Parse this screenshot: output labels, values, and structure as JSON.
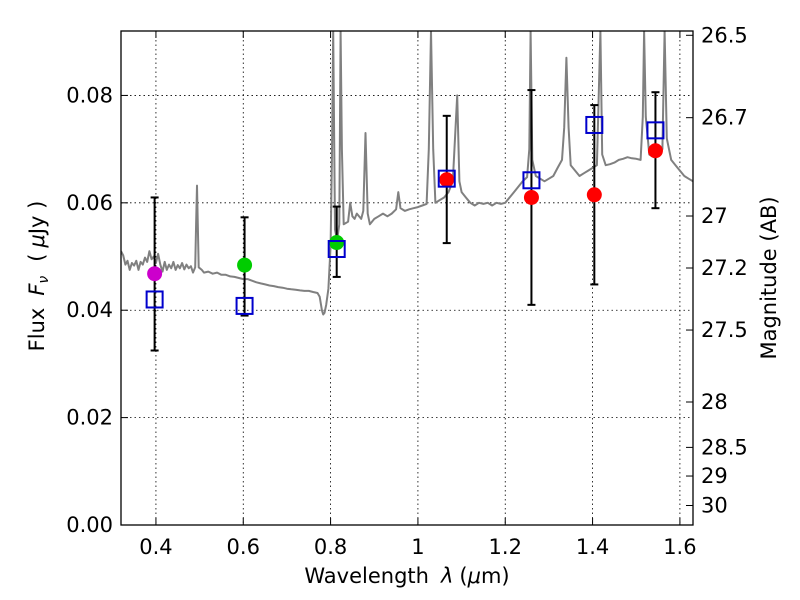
{
  "chart_data": {
    "type": "scatter",
    "xlabel_main": "Wavelength",
    "xlabel_symbol": "λ",
    "xlabel_unit_open": "(",
    "xlabel_unit_mu": "μ",
    "xlabel_unit_rest": "m)",
    "ylabel_main": "Flux",
    "ylabel_symbol": "F",
    "ylabel_sub": "ν",
    "ylabel_unit_open": "(",
    "ylabel_unit_mu": "μ",
    "ylabel_unit_rest": "Jy )",
    "y2label": "Magnitude (AB)",
    "xlim": [
      0.32,
      1.63
    ],
    "ylim": [
      0.0,
      0.092
    ],
    "grid": true,
    "x_ticks": [
      {
        "value": 0.4,
        "label": "0.4"
      },
      {
        "value": 0.6,
        "label": "0.6"
      },
      {
        "value": 0.8,
        "label": "0.8"
      },
      {
        "value": 1.0,
        "label": "1"
      },
      {
        "value": 1.2,
        "label": "1.2"
      },
      {
        "value": 1.4,
        "label": "1.4"
      },
      {
        "value": 1.6,
        "label": "1.6"
      }
    ],
    "y_ticks": [
      {
        "value": 0.0,
        "label": "0.00"
      },
      {
        "value": 0.02,
        "label": "0.02"
      },
      {
        "value": 0.04,
        "label": "0.04"
      },
      {
        "value": 0.06,
        "label": "0.06"
      },
      {
        "value": 0.08,
        "label": "0.08"
      }
    ],
    "y2_ticks": [
      {
        "value": 26.5,
        "label": "26.5"
      },
      {
        "value": 26.7,
        "label": "26.7"
      },
      {
        "value": 27.0,
        "label": "27"
      },
      {
        "value": 27.2,
        "label": "27.2"
      },
      {
        "value": 27.5,
        "label": "27.5"
      },
      {
        "value": 28.0,
        "label": "28"
      },
      {
        "value": 28.5,
        "label": "28.5"
      },
      {
        "value": 29.0,
        "label": "29"
      },
      {
        "value": 30.0,
        "label": "30"
      }
    ],
    "series": [
      {
        "name": "model spectrum",
        "kind": "line",
        "color": "#808080",
        "points": [
          [
            0.32,
            0.051
          ],
          [
            0.325,
            0.0502
          ],
          [
            0.33,
            0.0485
          ],
          [
            0.335,
            0.0492
          ],
          [
            0.34,
            0.0475
          ],
          [
            0.345,
            0.0488
          ],
          [
            0.35,
            0.0483
          ],
          [
            0.355,
            0.0492
          ],
          [
            0.36,
            0.0475
          ],
          [
            0.365,
            0.049
          ],
          [
            0.37,
            0.0485
          ],
          [
            0.375,
            0.0498
          ],
          [
            0.38,
            0.049
          ],
          [
            0.385,
            0.051
          ],
          [
            0.39,
            0.0495
          ],
          [
            0.395,
            0.05
          ],
          [
            0.4,
            0.0488
          ],
          [
            0.405,
            0.0505
          ],
          [
            0.41,
            0.0485
          ],
          [
            0.415,
            0.0472
          ],
          [
            0.42,
            0.049
          ],
          [
            0.425,
            0.0475
          ],
          [
            0.43,
            0.0485
          ],
          [
            0.435,
            0.0478
          ],
          [
            0.44,
            0.049
          ],
          [
            0.445,
            0.0475
          ],
          [
            0.45,
            0.0484
          ],
          [
            0.455,
            0.0478
          ],
          [
            0.46,
            0.0488
          ],
          [
            0.465,
            0.0476
          ],
          [
            0.47,
            0.0485
          ],
          [
            0.475,
            0.0478
          ],
          [
            0.48,
            0.0482
          ],
          [
            0.485,
            0.047
          ],
          [
            0.49,
            0.048
          ],
          [
            0.492,
            0.056
          ],
          [
            0.494,
            0.0632
          ],
          [
            0.496,
            0.056
          ],
          [
            0.498,
            0.048
          ],
          [
            0.505,
            0.0475
          ],
          [
            0.51,
            0.047
          ],
          [
            0.52,
            0.0472
          ],
          [
            0.53,
            0.0468
          ],
          [
            0.54,
            0.047
          ],
          [
            0.55,
            0.0466
          ],
          [
            0.56,
            0.0466
          ],
          [
            0.57,
            0.0463
          ],
          [
            0.58,
            0.0462
          ],
          [
            0.59,
            0.046
          ],
          [
            0.6,
            0.0458
          ],
          [
            0.61,
            0.0458
          ],
          [
            0.62,
            0.0455
          ],
          [
            0.63,
            0.0452
          ],
          [
            0.64,
            0.045
          ],
          [
            0.65,
            0.0448
          ],
          [
            0.66,
            0.0446
          ],
          [
            0.67,
            0.0445
          ],
          [
            0.68,
            0.0443
          ],
          [
            0.69,
            0.0442
          ],
          [
            0.7,
            0.044
          ],
          [
            0.71,
            0.0439
          ],
          [
            0.72,
            0.0438
          ],
          [
            0.73,
            0.0437
          ],
          [
            0.74,
            0.0436
          ],
          [
            0.75,
            0.0436
          ],
          [
            0.76,
            0.0434
          ],
          [
            0.77,
            0.0432
          ],
          [
            0.775,
            0.0425
          ],
          [
            0.78,
            0.04
          ],
          [
            0.783,
            0.0392
          ],
          [
            0.786,
            0.0395
          ],
          [
            0.79,
            0.041
          ],
          [
            0.795,
            0.044
          ],
          [
            0.8,
            0.052
          ],
          [
            0.803,
            0.068
          ],
          [
            0.806,
            0.092
          ],
          [
            0.81,
            0.055
          ],
          [
            0.815,
            0.053
          ],
          [
            0.82,
            0.056
          ],
          [
            0.823,
            0.092
          ],
          [
            0.826,
            0.07
          ],
          [
            0.83,
            0.056
          ],
          [
            0.84,
            0.0565
          ],
          [
            0.845,
            0.06
          ],
          [
            0.85,
            0.0575
          ],
          [
            0.855,
            0.057
          ],
          [
            0.86,
            0.058
          ],
          [
            0.87,
            0.057
          ],
          [
            0.875,
            0.0585
          ],
          [
            0.88,
            0.073
          ],
          [
            0.885,
            0.058
          ],
          [
            0.89,
            0.056
          ],
          [
            0.9,
            0.057
          ],
          [
            0.91,
            0.0575
          ],
          [
            0.92,
            0.058
          ],
          [
            0.93,
            0.0575
          ],
          [
            0.94,
            0.058
          ],
          [
            0.95,
            0.0588
          ],
          [
            0.955,
            0.062
          ],
          [
            0.96,
            0.059
          ],
          [
            0.97,
            0.0585
          ],
          [
            0.98,
            0.0588
          ],
          [
            0.99,
            0.059
          ],
          [
            1.0,
            0.0592
          ],
          [
            1.01,
            0.0595
          ],
          [
            1.02,
            0.0598
          ],
          [
            1.025,
            0.07
          ],
          [
            1.03,
            0.092
          ],
          [
            1.035,
            0.07
          ],
          [
            1.04,
            0.06
          ],
          [
            1.05,
            0.0605
          ],
          [
            1.06,
            0.061
          ],
          [
            1.07,
            0.062
          ],
          [
            1.08,
            0.064
          ],
          [
            1.09,
            0.08
          ],
          [
            1.095,
            0.064
          ],
          [
            1.1,
            0.062
          ],
          [
            1.11,
            0.061
          ],
          [
            1.12,
            0.06
          ],
          [
            1.13,
            0.0595
          ],
          [
            1.14,
            0.06
          ],
          [
            1.15,
            0.0598
          ],
          [
            1.16,
            0.06
          ],
          [
            1.17,
            0.0595
          ],
          [
            1.18,
            0.06
          ],
          [
            1.19,
            0.0598
          ],
          [
            1.2,
            0.06
          ],
          [
            1.21,
            0.061
          ],
          [
            1.22,
            0.062
          ],
          [
            1.23,
            0.063
          ],
          [
            1.24,
            0.064
          ],
          [
            1.25,
            0.0648
          ],
          [
            1.255,
            0.07
          ],
          [
            1.258,
            0.092
          ],
          [
            1.262,
            0.068
          ],
          [
            1.27,
            0.065
          ],
          [
            1.28,
            0.0645
          ],
          [
            1.29,
            0.064
          ],
          [
            1.3,
            0.0645
          ],
          [
            1.31,
            0.065
          ],
          [
            1.32,
            0.0665
          ],
          [
            1.33,
            0.068
          ],
          [
            1.335,
            0.074
          ],
          [
            1.34,
            0.087
          ],
          [
            1.345,
            0.074
          ],
          [
            1.35,
            0.067
          ],
          [
            1.36,
            0.066
          ],
          [
            1.37,
            0.065
          ],
          [
            1.38,
            0.0655
          ],
          [
            1.39,
            0.066
          ],
          [
            1.4,
            0.0665
          ],
          [
            1.41,
            0.067
          ],
          [
            1.418,
            0.092
          ],
          [
            1.422,
            0.069
          ],
          [
            1.43,
            0.067
          ],
          [
            1.44,
            0.0672
          ],
          [
            1.45,
            0.0675
          ],
          [
            1.46,
            0.068
          ],
          [
            1.47,
            0.0682
          ],
          [
            1.48,
            0.0685
          ],
          [
            1.49,
            0.0683
          ],
          [
            1.5,
            0.0682
          ],
          [
            1.51,
            0.068
          ],
          [
            1.515,
            0.076
          ],
          [
            1.518,
            0.092
          ],
          [
            1.522,
            0.076
          ],
          [
            1.53,
            0.069
          ],
          [
            1.54,
            0.0685
          ],
          [
            1.55,
            0.0688
          ],
          [
            1.56,
            0.07
          ],
          [
            1.565,
            0.092
          ],
          [
            1.57,
            0.072
          ],
          [
            1.58,
            0.068
          ],
          [
            1.59,
            0.067
          ],
          [
            1.6,
            0.066
          ],
          [
            1.61,
            0.065
          ],
          [
            1.62,
            0.0645
          ],
          [
            1.63,
            0.064
          ]
        ]
      },
      {
        "name": "observed photometry",
        "kind": "circle",
        "points": [
          {
            "x": 0.397,
            "y": 0.0468,
            "color": "#cc00cc"
          },
          {
            "x": 0.603,
            "y": 0.0484,
            "color": "#00cc00"
          },
          {
            "x": 0.814,
            "y": 0.0526,
            "color": "#00cc00"
          },
          {
            "x": 1.066,
            "y": 0.0643,
            "color": "#ff0000"
          },
          {
            "x": 1.26,
            "y": 0.061,
            "color": "#ff0000"
          },
          {
            "x": 1.404,
            "y": 0.0615,
            "color": "#ff0000"
          },
          {
            "x": 1.544,
            "y": 0.0697,
            "color": "#ff0000"
          }
        ]
      },
      {
        "name": "model photometry",
        "kind": "square",
        "color": "#0000cc",
        "points": [
          {
            "x": 0.397,
            "y": 0.042
          },
          {
            "x": 0.603,
            "y": 0.0408
          },
          {
            "x": 0.814,
            "y": 0.0514
          },
          {
            "x": 1.066,
            "y": 0.0645
          },
          {
            "x": 1.26,
            "y": 0.0642
          },
          {
            "x": 1.404,
            "y": 0.0745
          },
          {
            "x": 1.544,
            "y": 0.0735
          }
        ]
      },
      {
        "name": "error bars",
        "kind": "errorbar",
        "color": "#000000",
        "points": [
          {
            "x": 0.397,
            "low": 0.0325,
            "high": 0.061
          },
          {
            "x": 0.603,
            "low": 0.039,
            "high": 0.0573
          },
          {
            "x": 0.814,
            "low": 0.0462,
            "high": 0.0593
          },
          {
            "x": 1.066,
            "low": 0.0525,
            "high": 0.0762
          },
          {
            "x": 1.26,
            "low": 0.041,
            "high": 0.081
          },
          {
            "x": 1.404,
            "low": 0.0448,
            "high": 0.0782
          },
          {
            "x": 1.544,
            "low": 0.059,
            "high": 0.0806
          }
        ]
      }
    ]
  }
}
